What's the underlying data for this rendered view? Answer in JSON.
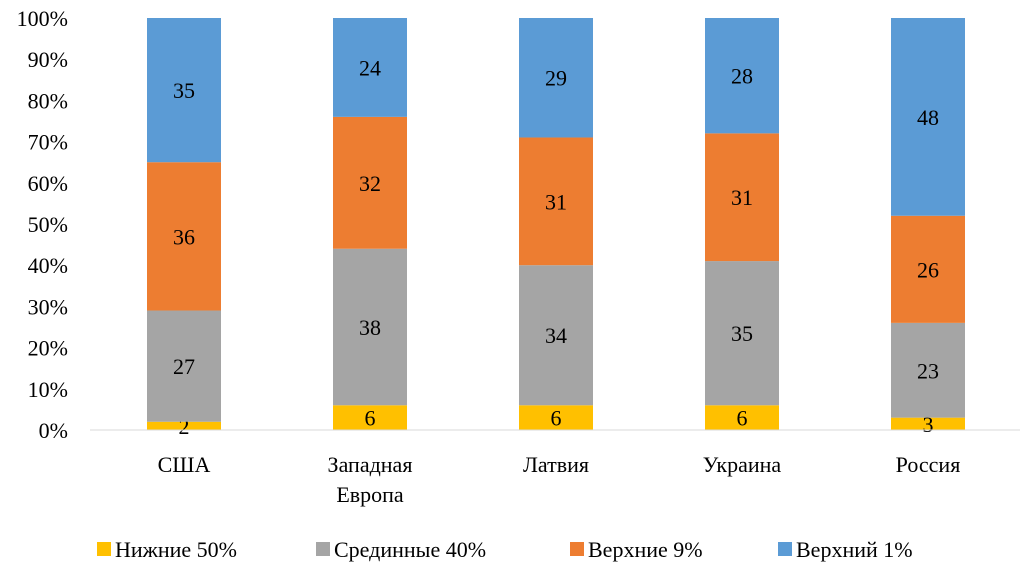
{
  "chart_data": {
    "type": "bar",
    "stacked": true,
    "title": "",
    "xlabel": "",
    "ylabel": "",
    "ylim": [
      0,
      100
    ],
    "yticks": [
      "0%",
      "10%",
      "20%",
      "30%",
      "40%",
      "50%",
      "60%",
      "70%",
      "80%",
      "90%",
      "100%"
    ],
    "categories": [
      [
        "США"
      ],
      [
        "Западная",
        "Европа"
      ],
      [
        "Латвия"
      ],
      [
        "Украина"
      ],
      [
        "Россия"
      ]
    ],
    "series": [
      {
        "name": "Нижние 50%",
        "color": "#FFC000",
        "values": [
          2,
          6,
          6,
          6,
          3
        ]
      },
      {
        "name": "Срединные 40%",
        "color": "#A5A5A5",
        "values": [
          27,
          38,
          34,
          35,
          23
        ]
      },
      {
        "name": "Верхние 9%",
        "color": "#ED7D31",
        "values": [
          36,
          32,
          31,
          31,
          26
        ]
      },
      {
        "name": "Верхний 1%",
        "color": "#5B9BD5",
        "values": [
          35,
          24,
          29,
          28,
          48
        ]
      }
    ],
    "legend_position": "bottom",
    "grid": false
  }
}
